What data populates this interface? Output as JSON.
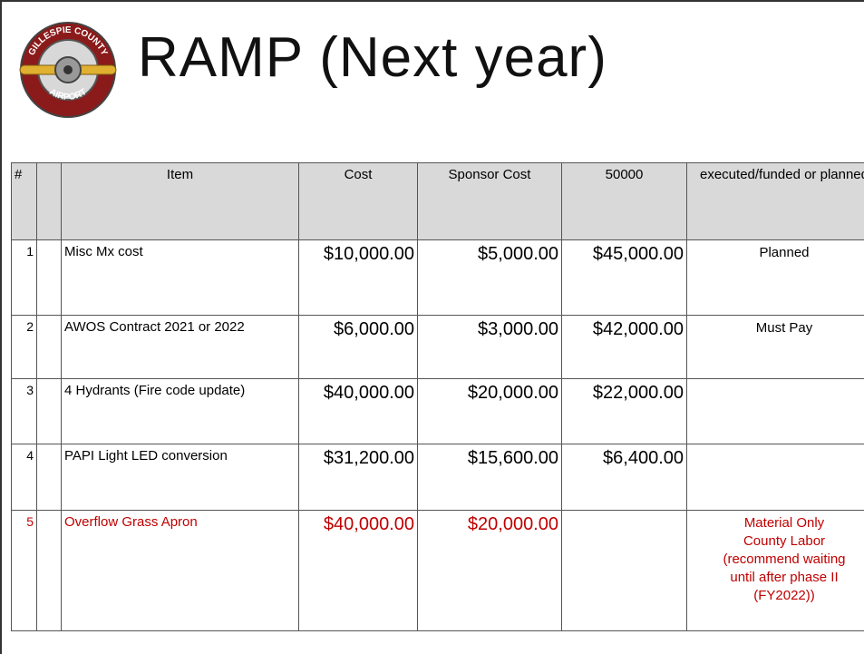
{
  "slide": {
    "title": "RAMP (Next year)",
    "logo": {
      "top": "GILLESPIE COUNTY",
      "bottom": "AIRPORT"
    },
    "table": {
      "columns": [
        "#",
        "Item",
        "Cost",
        "Sponsor Cost",
        "50000",
        "executed/funded or planned"
      ],
      "rows": [
        {
          "num": "1",
          "item": "Misc Mx cost",
          "cost": "$10,000.00",
          "sponsor": "$5,000.00",
          "remaining": "$45,000.00",
          "status": [
            "Planned"
          ]
        },
        {
          "num": "2",
          "item": "AWOS Contract 2021 or 2022",
          "cost": "$6,000.00",
          "sponsor": "$3,000.00",
          "remaining": "$42,000.00",
          "status": [
            "Must Pay"
          ]
        },
        {
          "num": "3",
          "item": "4 Hydrants (Fire code update)",
          "cost": "$40,000.00",
          "sponsor": "$20,000.00",
          "remaining": "$22,000.00"
        },
        {
          "num": "4",
          "item": "PAPI Light LED conversion",
          "cost": "$31,200.00",
          "sponsor": "$15,600.00",
          "remaining": "$6,400.00"
        },
        {
          "num": "5",
          "item": "Overflow Grass Apron",
          "cost": "$40,000.00",
          "sponsor": "$20,000.00",
          "highlight": "#c00000",
          "status": [
            "Material Only",
            "County Labor",
            "(recommend waiting",
            "until after phase II",
            "(FY2022))"
          ]
        }
      ]
    }
  }
}
